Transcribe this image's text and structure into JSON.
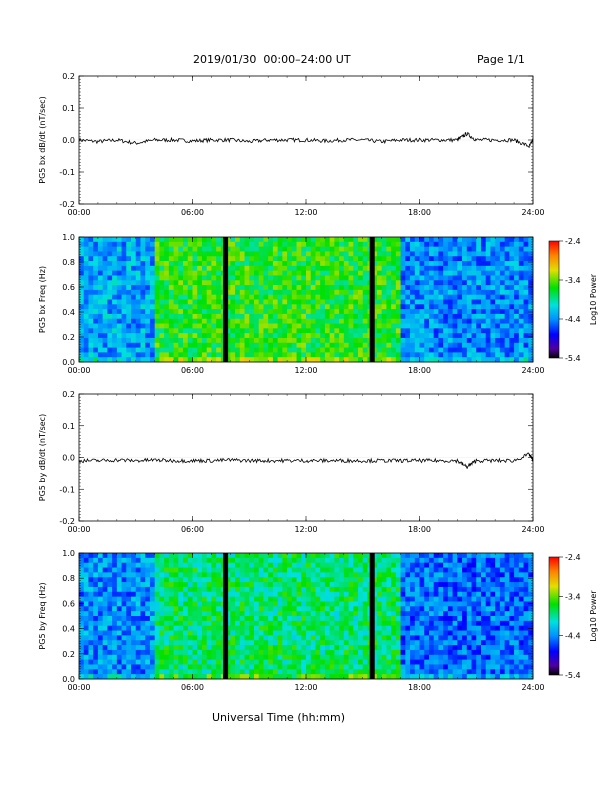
{
  "header": {
    "title": "2019/01/30  00:00–24:00 UT",
    "page": "Page 1/1"
  },
  "footer": {
    "xlabel": "Universal Time (hh:mm)"
  },
  "colors": {
    "axis": "#000000",
    "trace": "#000000",
    "gap": "#000000"
  },
  "chart_data": [
    {
      "type": "line",
      "id": "bx_waveform",
      "ylabel": "PG5 bx dB/dt (nT/sec)",
      "ylim": [
        -0.2,
        0.2
      ],
      "yticks": [
        "0.2",
        "0.1",
        "0.0",
        "-0.1",
        "-0.2"
      ],
      "xlim": [
        0,
        24
      ],
      "xticks": [
        "00:00",
        "06:00",
        "12:00",
        "18:00",
        "24:00"
      ],
      "series": [
        {
          "x": [
            0,
            1,
            2,
            3,
            4,
            5,
            6,
            7,
            8,
            9,
            10,
            11,
            12,
            13,
            14,
            15,
            16,
            17,
            18,
            19,
            20,
            20.5,
            21,
            22,
            23,
            23.8,
            24
          ],
          "y": [
            0.0,
            -0.005,
            0.0,
            -0.01,
            0.0,
            0.0,
            -0.003,
            0.0,
            0.0,
            -0.005,
            0.0,
            0.0,
            0.0,
            -0.003,
            0.0,
            0.0,
            -0.005,
            0.0,
            0.0,
            0.0,
            0.0,
            0.02,
            0.0,
            0.0,
            0.0,
            -0.02,
            0.0
          ]
        }
      ]
    },
    {
      "type": "heatmap",
      "id": "bx_spectrogram",
      "ylabel": "PG5 bx Freq (Hz)",
      "ylim": [
        0.0,
        1.0
      ],
      "yticks": [
        "1.0",
        "0.8",
        "0.6",
        "0.4",
        "0.2",
        "0.0"
      ],
      "xlim": [
        0,
        24
      ],
      "xticks": [
        "00:00",
        "06:00",
        "12:00",
        "18:00",
        "24:00"
      ],
      "colorbar": {
        "label": "Log10 Power",
        "ticks": [
          "-2.4",
          "-3.4",
          "-4.4",
          "-5.4"
        ],
        "range": [
          -5.4,
          -2.4
        ]
      },
      "data_gaps_hours": [
        7.75,
        15.5
      ],
      "segments": [
        {
          "from": 0,
          "to": 4.1,
          "log_power": -4.3
        },
        {
          "from": 4.1,
          "to": 17.1,
          "log_power": -3.6
        },
        {
          "from": 17.1,
          "to": 24,
          "log_power": -4.4
        }
      ]
    },
    {
      "type": "line",
      "id": "by_waveform",
      "ylabel": "PG5 by dB/dt (nT/sec)",
      "ylim": [
        -0.2,
        0.2
      ],
      "yticks": [
        "0.2",
        "0.1",
        "0.0",
        "-0.1",
        "-0.2"
      ],
      "xlim": [
        0,
        24
      ],
      "xticks": [
        "00:00",
        "06:00",
        "12:00",
        "18:00",
        "24:00"
      ],
      "series": [
        {
          "x": [
            0,
            1,
            2,
            3,
            4,
            5,
            6,
            7,
            8,
            9,
            10,
            11,
            12,
            13,
            14,
            15,
            16,
            17,
            18,
            19,
            20,
            20.5,
            21,
            22,
            23,
            23.8,
            24
          ],
          "y": [
            -0.01,
            -0.01,
            -0.008,
            -0.01,
            -0.008,
            -0.01,
            -0.01,
            -0.01,
            -0.008,
            -0.01,
            -0.01,
            -0.01,
            -0.01,
            -0.01,
            -0.01,
            -0.01,
            -0.01,
            -0.01,
            -0.01,
            -0.01,
            -0.01,
            -0.03,
            -0.01,
            -0.01,
            -0.01,
            0.01,
            -0.01
          ]
        }
      ]
    },
    {
      "type": "heatmap",
      "id": "by_spectrogram",
      "ylabel": "PG5 by Freq (Hz)",
      "ylim": [
        0.0,
        1.0
      ],
      "yticks": [
        "1.0",
        "0.8",
        "0.6",
        "0.4",
        "0.2",
        "0.0"
      ],
      "xlim": [
        0,
        24
      ],
      "xticks": [
        "00:00",
        "06:00",
        "12:00",
        "18:00",
        "24:00"
      ],
      "colorbar": {
        "label": "Log10 Power",
        "ticks": [
          "-2.4",
          "-3.4",
          "-4.4",
          "-5.4"
        ],
        "range": [
          -5.4,
          -2.4
        ]
      },
      "data_gaps_hours": [
        7.75,
        15.5
      ],
      "segments": [
        {
          "from": 0,
          "to": 4.1,
          "log_power": -4.4
        },
        {
          "from": 4.1,
          "to": 17.1,
          "log_power": -3.8
        },
        {
          "from": 17.1,
          "to": 24,
          "log_power": -4.5
        }
      ]
    }
  ]
}
